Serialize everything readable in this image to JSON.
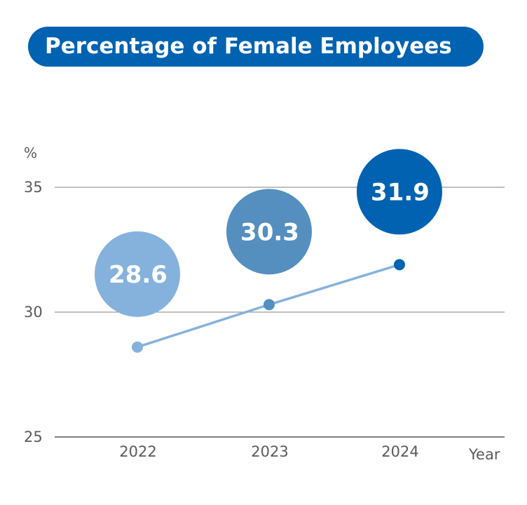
{
  "chart_data": {
    "type": "line",
    "title": "Percentage of Female Employees",
    "categories": [
      "2022",
      "2023",
      "2024"
    ],
    "values": [
      28.6,
      30.3,
      31.9
    ],
    "data_labels": [
      "28.6",
      "30.3",
      "31.9"
    ],
    "ylabel": "%",
    "xlabel": "Year",
    "ylim": [
      25,
      35
    ],
    "yticks": [
      "25",
      "30",
      "35"
    ],
    "grid": true,
    "line_color": "#85b2dc",
    "point_colors": [
      "#85b2dc",
      "#548fbf",
      "#0062b1"
    ],
    "title_bg": "#0062b1"
  }
}
